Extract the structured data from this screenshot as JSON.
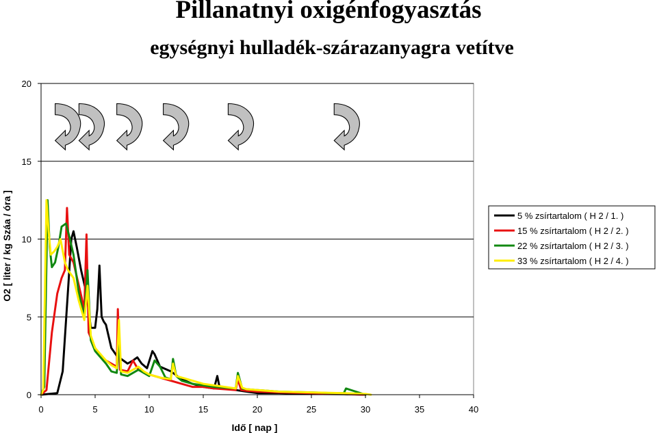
{
  "title": "Pillanatnyi oxigénfogyasztás",
  "subtitle": "egységnyi hulladék-szárazanyagra vetítve",
  "chart_data": {
    "type": "line",
    "xlabel": "Idő [ nap ]",
    "ylabel": "O2 [ liter / kg Száa / óra ]",
    "xlim": [
      0,
      40
    ],
    "ylim": [
      0,
      20
    ],
    "xticks": [
      0,
      5,
      10,
      15,
      20,
      25,
      30,
      35,
      40
    ],
    "yticks": [
      0,
      5,
      10,
      15,
      20
    ],
    "grid": "horizontal",
    "legend_position": "right",
    "annotations": {
      "type": "curved-arrow",
      "icon": "curved-arrow-icon",
      "count": 6,
      "x": [
        2.5,
        4.7,
        8.2,
        12.5,
        18.5,
        28.3
      ],
      "meaning": "turning events (unlabeled)"
    },
    "series": [
      {
        "name": "5 % zsírtartalom ( H  2 / 1. )",
        "color": "#000000",
        "x": [
          0,
          1.5,
          2.0,
          2.5,
          2.8,
          3.0,
          3.3,
          3.7,
          4.2,
          4.6,
          5.0,
          5.2,
          5.4,
          5.6,
          5.8,
          6.0,
          6.5,
          7.0,
          8.0,
          8.5,
          8.9,
          9.3,
          9.8,
          10.3,
          10.5,
          11.0,
          12.0,
          13.0,
          14.0,
          15.0,
          16.0,
          16.3,
          16.5,
          17.0,
          18.0,
          19.0,
          20.0,
          22.0,
          25.0,
          28.0,
          30.0
        ],
        "y": [
          0,
          0.1,
          1.5,
          6.8,
          10.0,
          10.5,
          9.5,
          8.0,
          6.5,
          4.3,
          4.3,
          5.5,
          8.3,
          5.0,
          4.7,
          4.5,
          3.0,
          2.5,
          2.0,
          2.2,
          2.4,
          2.0,
          1.7,
          2.8,
          2.6,
          1.8,
          1.5,
          1.0,
          0.7,
          0.5,
          0.4,
          1.2,
          0.5,
          0.4,
          0.3,
          0.2,
          0.1,
          0.1,
          0.05,
          0.03,
          0
        ]
      },
      {
        "name": "15 % zsírtartalom ( H  2 / 2. )",
        "color": "#e81010",
        "x": [
          0,
          0.5,
          1.0,
          1.5,
          1.9,
          2.2,
          2.4,
          2.6,
          3.0,
          3.5,
          4.0,
          4.2,
          4.4,
          5.0,
          5.5,
          6.0,
          6.5,
          7.0,
          7.1,
          7.3,
          8.0,
          8.5,
          9.0,
          10.0,
          11.0,
          12.0,
          13.0,
          14.0,
          15.0,
          16.0,
          17.0,
          18.0,
          18.2,
          18.5,
          19.0,
          20.0,
          22.0,
          25.0,
          28.0,
          30.0
        ],
        "y": [
          0,
          0.3,
          4.0,
          6.5,
          7.5,
          8.0,
          12.0,
          9.0,
          8.5,
          7.0,
          5.5,
          10.3,
          4.0,
          3.0,
          2.5,
          2.2,
          2.0,
          1.8,
          5.5,
          1.6,
          1.5,
          2.2,
          1.6,
          1.3,
          1.1,
          0.9,
          0.7,
          0.5,
          0.5,
          0.4,
          0.35,
          0.3,
          1.0,
          0.3,
          0.25,
          0.2,
          0.15,
          0.1,
          0.05,
          0
        ]
      },
      {
        "name": "22 % zsírtartalom ( H  2 / 3. )",
        "color": "#118811",
        "x": [
          0,
          0.3,
          0.6,
          0.8,
          1.0,
          1.3,
          1.6,
          1.9,
          2.3,
          2.6,
          3.0,
          3.5,
          4.0,
          4.3,
          4.6,
          5.0,
          5.5,
          6.0,
          6.5,
          7.0,
          7.2,
          7.4,
          8.0,
          9.0,
          10.0,
          10.5,
          11.0,
          11.5,
          12.0,
          12.2,
          12.5,
          13.0,
          14.0,
          15.0,
          16.0,
          17.0,
          18.0,
          18.2,
          18.6,
          19.0,
          20.0,
          22.0,
          25.0,
          27.0,
          28.0,
          28.2,
          30.0
        ],
        "y": [
          0,
          0.5,
          12.5,
          9.5,
          8.2,
          8.5,
          9.5,
          10.8,
          11.0,
          10.2,
          9.0,
          6.5,
          5.0,
          8.0,
          3.5,
          2.8,
          2.4,
          2.0,
          1.5,
          1.4,
          3.5,
          1.3,
          1.2,
          1.6,
          1.2,
          2.2,
          1.8,
          1.1,
          1.0,
          2.3,
          1.2,
          0.9,
          0.7,
          0.6,
          0.5,
          0.45,
          0.4,
          1.4,
          0.4,
          0.35,
          0.3,
          0.2,
          0.15,
          0.1,
          0.1,
          0.4,
          0
        ]
      },
      {
        "name": "33 % zsírtartalom ( H  2 / 4. )",
        "color": "#ffee00",
        "x": [
          0,
          0.2,
          0.5,
          0.7,
          0.9,
          1.2,
          1.5,
          1.8,
          2.2,
          2.5,
          3.0,
          3.5,
          4.0,
          4.3,
          4.6,
          5.0,
          5.5,
          6.0,
          6.5,
          7.0,
          7.2,
          7.4,
          8.0,
          9.0,
          9.5,
          10.0,
          11.0,
          12.0,
          12.2,
          12.5,
          13.0,
          14.0,
          15.0,
          16.0,
          17.0,
          18.0,
          18.2,
          18.6,
          19.0,
          20.0,
          22.0,
          25.0,
          28.0,
          30.0,
          30.5
        ],
        "y": [
          0,
          0.3,
          12.5,
          10.5,
          9.0,
          9.2,
          9.5,
          10.0,
          8.5,
          8.0,
          7.5,
          6.0,
          4.8,
          7.0,
          3.8,
          3.0,
          2.6,
          2.2,
          1.9,
          1.7,
          4.8,
          1.5,
          1.4,
          1.8,
          1.5,
          1.3,
          1.1,
          1.0,
          2.0,
          1.2,
          1.1,
          0.9,
          0.7,
          0.6,
          0.5,
          0.4,
          1.2,
          0.45,
          0.35,
          0.3,
          0.2,
          0.15,
          0.1,
          0.05,
          0
        ]
      }
    ]
  }
}
